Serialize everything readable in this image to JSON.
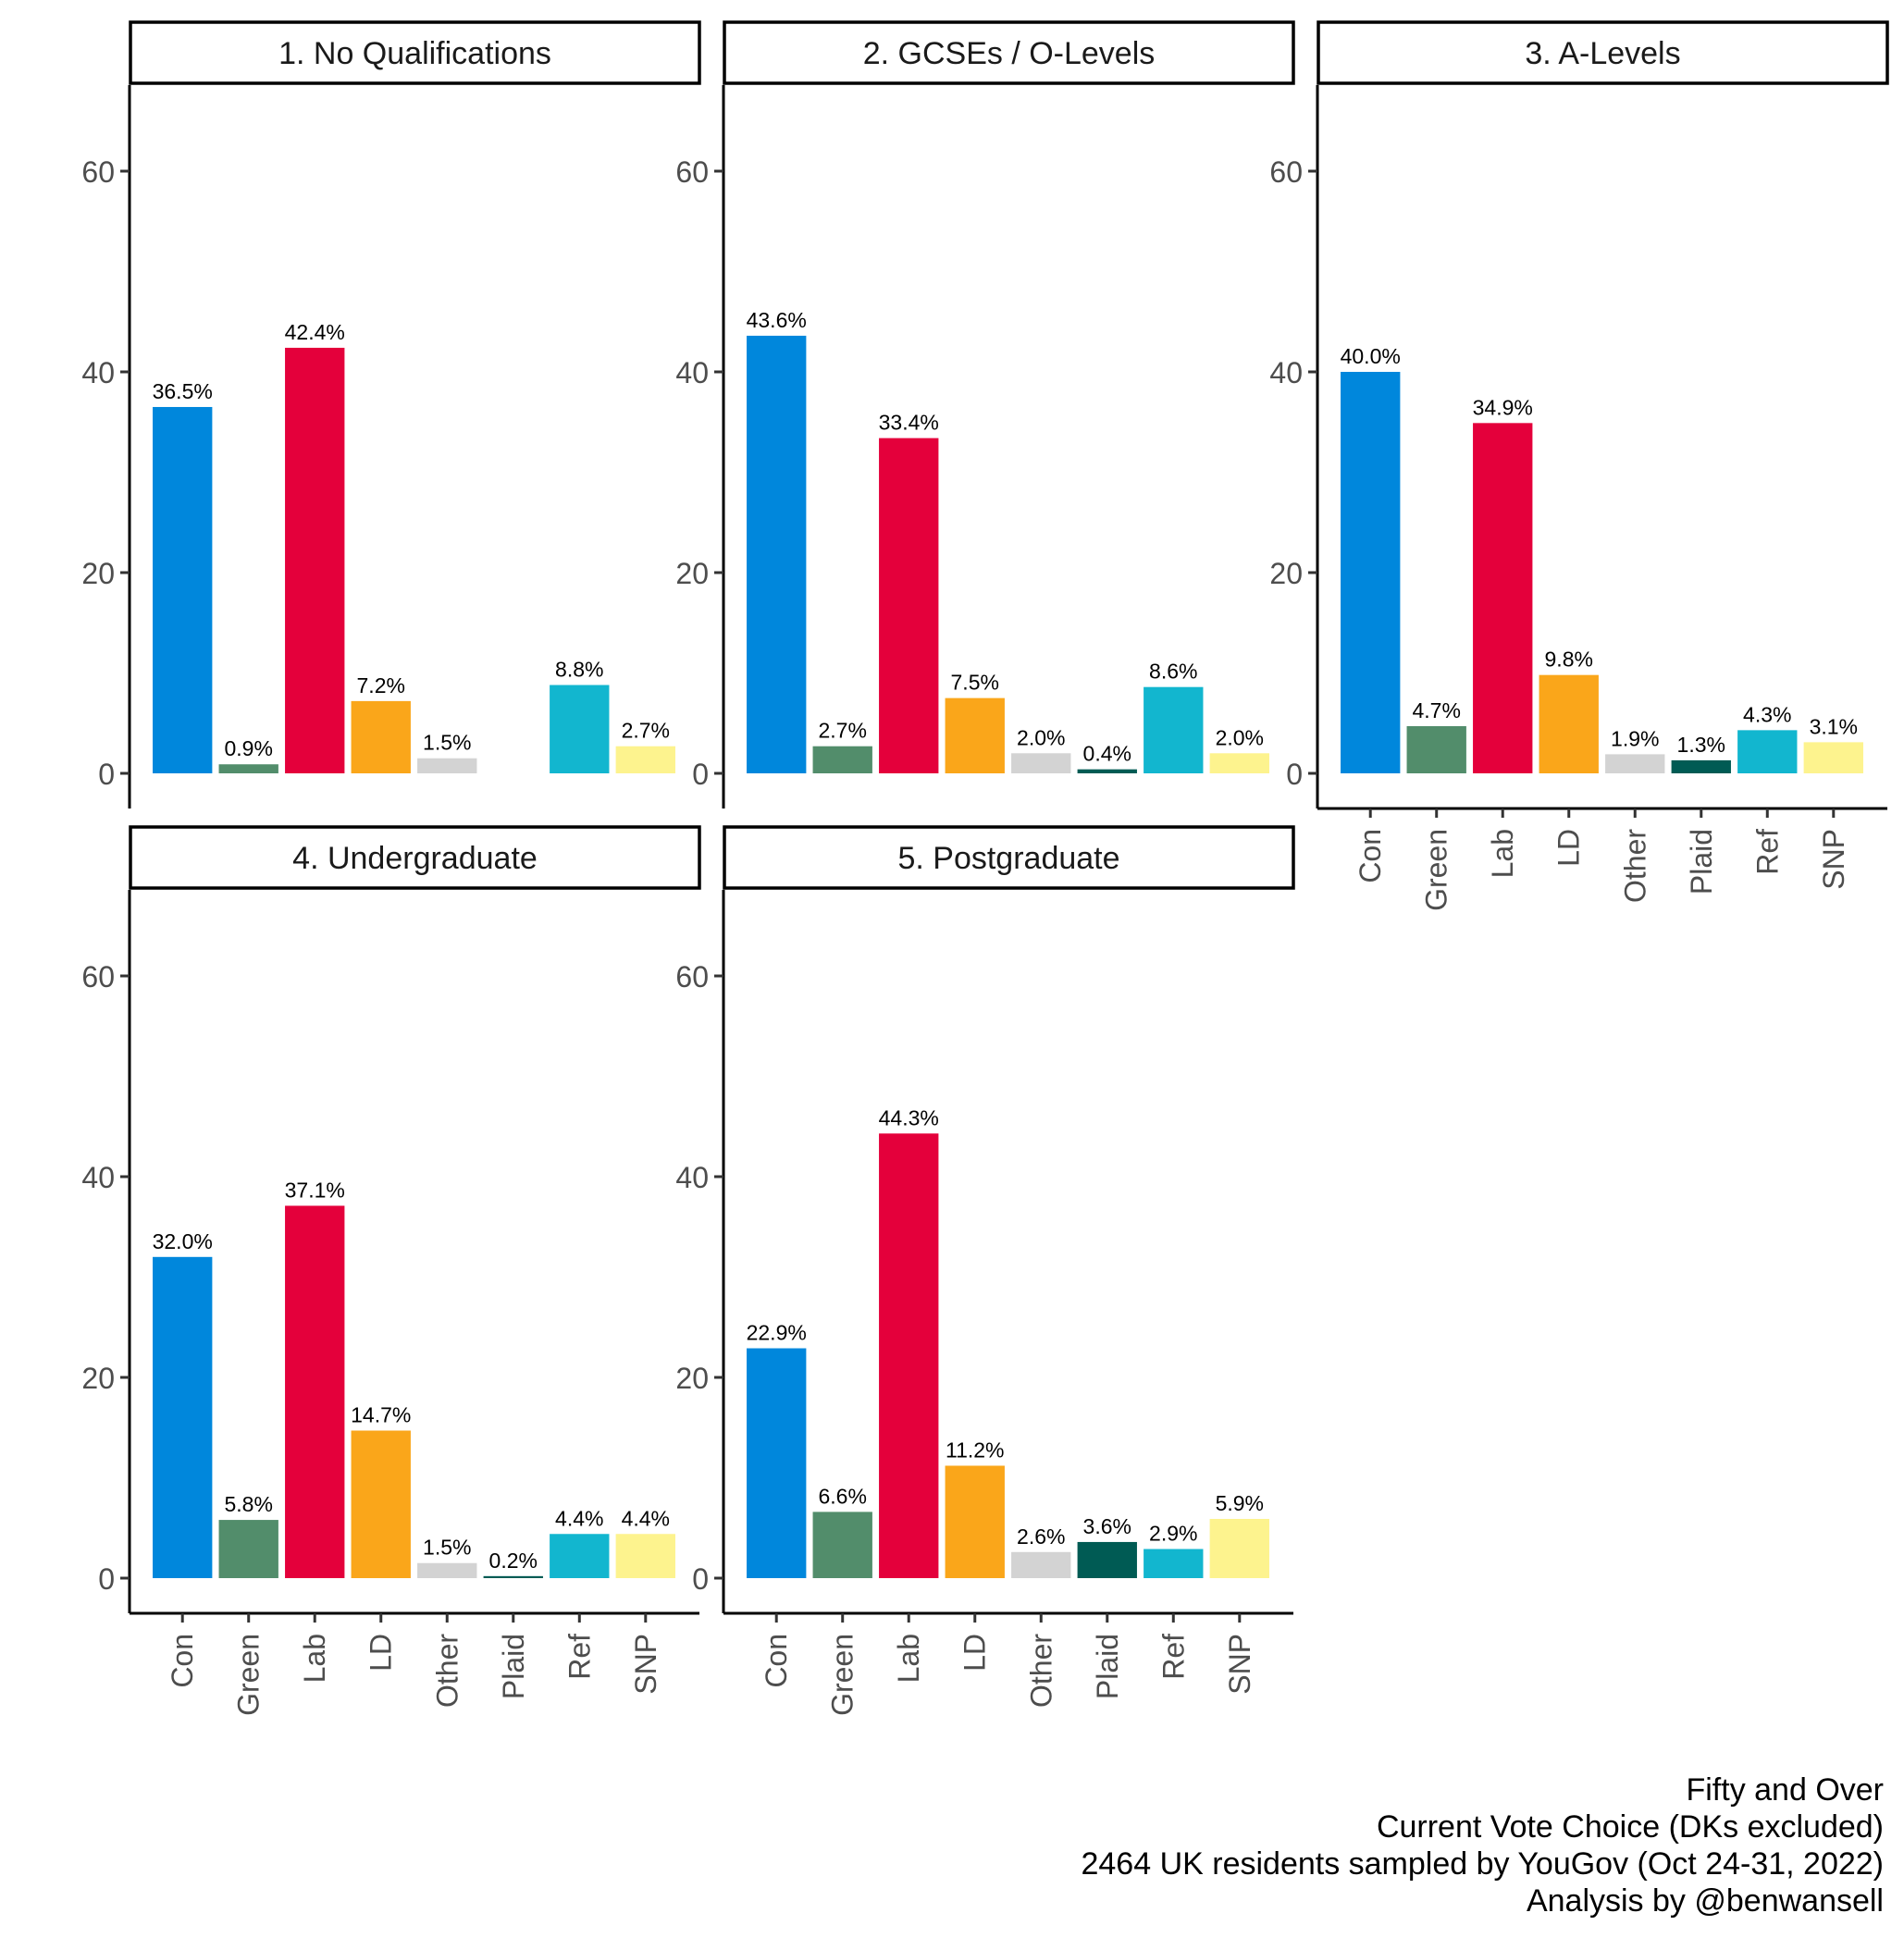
{
  "chart_data": {
    "type": "bar",
    "layout": "facets-3x2",
    "categories": [
      "Con",
      "Green",
      "Lab",
      "LD",
      "Other",
      "Plaid",
      "Ref",
      "SNP"
    ],
    "colors": {
      "Con": "#0087DC",
      "Green": "#528D6B",
      "Lab": "#E4003B",
      "LD": "#FAA61A",
      "Other": "#D3D3D3",
      "Plaid": "#005B54",
      "Ref": "#12B6CF",
      "SNP": "#FDF38E"
    },
    "ylim": [
      -3.5,
      68.5
    ],
    "yticks": [
      "0",
      "20",
      "40",
      "60"
    ],
    "xlabel": "",
    "ylabel": "",
    "grid": false,
    "legend": "none",
    "panels": [
      {
        "title": "1. No Qualifications",
        "values": [
          36.5,
          0.9,
          42.4,
          7.2,
          1.5,
          null,
          8.8,
          2.7
        ],
        "labels": [
          "36.5%",
          "0.9%",
          "42.4%",
          "7.2%",
          "1.5%",
          "",
          "8.8%",
          "2.7%"
        ]
      },
      {
        "title": "2. GCSEs / O-Levels",
        "values": [
          43.6,
          2.7,
          33.4,
          7.5,
          2.0,
          0.4,
          8.6,
          2.0
        ],
        "labels": [
          "43.6%",
          "2.7%",
          "33.4%",
          "7.5%",
          "2.0%",
          "0.4%",
          "8.6%",
          "2.0%"
        ]
      },
      {
        "title": "3. A-Levels",
        "values": [
          40.0,
          4.7,
          34.9,
          9.8,
          1.9,
          1.3,
          4.3,
          3.1
        ],
        "labels": [
          "40.0%",
          "4.7%",
          "34.9%",
          "9.8%",
          "1.9%",
          "1.3%",
          "4.3%",
          "3.1%"
        ]
      },
      {
        "title": "4. Undergraduate",
        "values": [
          32.0,
          5.8,
          37.1,
          14.7,
          1.5,
          0.2,
          4.4,
          4.4
        ],
        "labels": [
          "32.0%",
          "5.8%",
          "37.1%",
          "14.7%",
          "1.5%",
          "0.2%",
          "4.4%",
          "4.4%"
        ]
      },
      {
        "title": "5. Postgraduate",
        "values": [
          22.9,
          6.6,
          44.3,
          11.2,
          2.6,
          3.6,
          2.9,
          5.9
        ],
        "labels": [
          "22.9%",
          "6.6%",
          "44.3%",
          "11.2%",
          "2.6%",
          "3.6%",
          "2.9%",
          "5.9%"
        ]
      }
    ]
  },
  "caption": {
    "line1": "Fifty and Over",
    "line2": "Current Vote Choice (DKs excluded)",
    "line3": "2464 UK residents sampled by YouGov (Oct 24-31, 2022)",
    "line4": "Analysis by @benwansell"
  }
}
